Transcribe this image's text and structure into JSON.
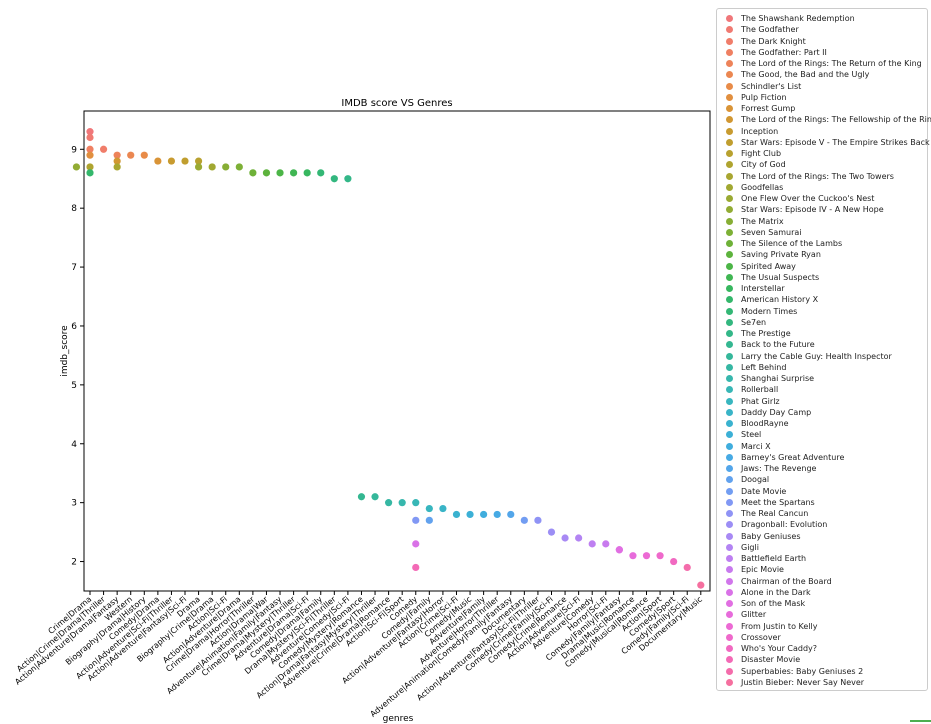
{
  "chart_data": {
    "type": "scatter",
    "title": "IMDB score VS Genres",
    "xlabel": "genres",
    "ylabel": "imdb_score",
    "ylim": [
      1.5,
      9.65
    ],
    "yticks": [
      2,
      3,
      4,
      5,
      6,
      7,
      8,
      9
    ],
    "grid": false,
    "legend_position": "outside-right",
    "categories": [
      "Crime|Drama",
      "Action|Crime|Drama|Thriller",
      "Action|Adventure|Drama|Fantasy",
      "Western",
      "Biography|Drama|History",
      "Comedy|Drama",
      "Action|Adventure|Sci-Fi|Thriller",
      "Action|Adventure|Fantasy|Sci-Fi",
      "Drama",
      "Biography|Crime|Drama",
      "Action|Sci-Fi",
      "Action|Adventure|Drama",
      "Crime|Drama|Horror|Thriller",
      "Action|Drama|War",
      "Adventure|Animation|Family|Fantasy",
      "Crime|Drama|Mystery|Thriller",
      "Adventure|Drama|Sci-Fi",
      "Comedy|Drama|Family",
      "Drama|Mystery|Sci-Fi|Thriller",
      "Adventure|Comedy|Sci-Fi",
      "Comedy|Mystery|Romance",
      "Action|Drama|Fantasy|Mystery|Thriller",
      "Adventure|Crime|Drama|Romance",
      "Action|Sci-Fi|Sport",
      "Comedy",
      "Comedy|Family",
      "Action|Adventure|Fantasy|Horror",
      "Action|Crime|Sci-Fi",
      "Comedy|Music",
      "Adventure|Family",
      "Adventure|Horror|Thriller",
      "Adventure|Animation|Comedy|Family|Fantasy",
      "Documentary",
      "Action|Adventure|Fantasy|Sci-Fi|Thriller",
      "Comedy|Crime|Family|Sci-Fi",
      "Comedy|Crime|Romance",
      "Action|Adventure|Sci-Fi",
      "Adventure|Comedy",
      "Horror|Sci-Fi",
      "Comedy|Family|Fantasy",
      "Drama|Music|Romance",
      "Comedy|Musical|Romance",
      "Action|Sport",
      "Comedy|Sport",
      "Comedy|Family|Sci-Fi",
      "Documentary|Music"
    ],
    "series": [
      {
        "name": "The Shawshank Redemption",
        "color": "#f0777a",
        "x": "Crime|Drama",
        "y": 9.3
      },
      {
        "name": "The Godfather",
        "color": "#f07a72",
        "x": "Crime|Drama",
        "y": 9.2
      },
      {
        "name": "The Dark Knight",
        "color": "#f07d6a",
        "x": "Action|Crime|Drama|Thriller",
        "y": 9.0
      },
      {
        "name": "The Godfather: Part II",
        "color": "#ef8062",
        "x": "Crime|Drama",
        "y": 9.0
      },
      {
        "name": "The Lord of the Rings: The Return of the King",
        "color": "#ed835a",
        "x": "Action|Adventure|Drama|Fantasy",
        "y": 8.9
      },
      {
        "name": "The Good, the Bad and the Ugly",
        "color": "#eb8751",
        "x": "Western",
        "y": 8.9
      },
      {
        "name": "Schindler's List",
        "color": "#e88b48",
        "x": "Biography|Drama|History",
        "y": 8.9
      },
      {
        "name": "Pulp Fiction",
        "color": "#e18f3f",
        "x": "Crime|Drama",
        "y": 8.9
      },
      {
        "name": "Forrest Gump",
        "color": "#d99437",
        "x": "Comedy|Drama",
        "y": 8.8
      },
      {
        "name": "The Lord of the Rings: The Fellowship of the Ring",
        "color": "#d19732",
        "x": "Action|Adventure|Drama|Fantasy",
        "y": 8.8
      },
      {
        "name": "Inception",
        "color": "#c89b30",
        "x": "Action|Adventure|Sci-Fi|Thriller",
        "y": 8.8
      },
      {
        "name": "Star Wars: Episode V - The Empire Strikes Back",
        "color": "#c09e2f",
        "x": "Action|Adventure|Fantasy|Sci-Fi",
        "y": 8.8
      },
      {
        "name": "Fight Club",
        "color": "#b8a12f",
        "x": "Drama",
        "y": 8.8
      },
      {
        "name": "City of God",
        "color": "#afa430",
        "x": "Crime|Drama",
        "y": 8.7
      },
      {
        "name": "The Lord of the Rings: The Two Towers",
        "color": "#a8a631",
        "x": "Action|Adventure|Drama|Fantasy",
        "y": 8.7
      },
      {
        "name": "Goodfellas",
        "color": "#a1a832",
        "x": "Biography|Crime|Drama",
        "y": 8.7
      },
      {
        "name": "One Flew Over the Cuckoo's Nest",
        "color": "#9aaa33",
        "x": "Drama",
        "y": 8.7
      },
      {
        "name": "Star Wars: Episode IV - A New Hope",
        "color": "#92ac34",
        "x": "Action|Adventure|Fantasy",
        "y": 8.7
      },
      {
        "name": "The Matrix",
        "color": "#87ae35",
        "x": "Action|Sci-Fi",
        "y": 8.7
      },
      {
        "name": "Seven Samurai",
        "color": "#7db036",
        "x": "Action|Adventure|Drama",
        "y": 8.7
      },
      {
        "name": "The Silence of the Lambs",
        "color": "#6eb138",
        "x": "Crime|Drama|Horror|Thriller",
        "y": 8.6
      },
      {
        "name": "Saving Private Ryan",
        "color": "#5db33d",
        "x": "Action|Drama|War",
        "y": 8.6
      },
      {
        "name": "Spirited Away",
        "color": "#4cb547",
        "x": "Adventure|Animation|Family|Fantasy",
        "y": 8.6
      },
      {
        "name": "The Usual Suspects",
        "color": "#40b653",
        "x": "Crime|Drama|Mystery|Thriller",
        "y": 8.6
      },
      {
        "name": "Interstellar",
        "color": "#37b75f",
        "x": "Adventure|Drama|Sci-Fi",
        "y": 8.6
      },
      {
        "name": "American History X",
        "color": "#34b76b",
        "x": "Crime|Drama",
        "y": 8.6
      },
      {
        "name": "Modern Times",
        "color": "#33b775",
        "x": "Comedy|Drama|Family",
        "y": 8.6
      },
      {
        "name": "Se7en",
        "color": "#33b77f",
        "x": "Drama|Mystery|Sci-Fi|Thriller",
        "y": 8.5
      },
      {
        "name": "The Prestige",
        "color": "#33b788",
        "x": "Adventure|Comedy|Sci-Fi",
        "y": 8.5
      },
      {
        "name": "Back to the Future",
        "color": "#34b791",
        "x": "Comedy|Mystery|Romance",
        "y": 3.1
      },
      {
        "name": "Larry the Cable Guy: Health Inspector",
        "color": "#35b79a",
        "x": "Action|Drama|Fantasy|Mystery|Thriller",
        "y": 3.1
      },
      {
        "name": "Left Behind",
        "color": "#36b7a3",
        "x": "Adventure|Crime|Drama|Romance",
        "y": 3.0
      },
      {
        "name": "Shanghai Surprise",
        "color": "#37b7ad",
        "x": "Action|Sci-Fi|Sport",
        "y": 3.0
      },
      {
        "name": "Rollerball",
        "color": "#38b7b6",
        "x": "Comedy",
        "y": 3.0
      },
      {
        "name": "Phat Girlz",
        "color": "#38b6bf",
        "x": "Comedy|Family",
        "y": 2.9
      },
      {
        "name": "Daddy Day Camp",
        "color": "#39b4c7",
        "x": "Action|Adventure|Fantasy|Horror",
        "y": 2.9
      },
      {
        "name": "BloodRayne",
        "color": "#3ab2cf",
        "x": "Action|Crime|Sci-Fi",
        "y": 2.8
      },
      {
        "name": "Steel",
        "color": "#3cb0d6",
        "x": "Comedy|Music",
        "y": 2.8
      },
      {
        "name": "Marci X",
        "color": "#40addd",
        "x": "Adventure|Family",
        "y": 2.8
      },
      {
        "name": "Barney's Great Adventure",
        "color": "#47aae4",
        "x": "Adventure|Horror|Thriller",
        "y": 2.8
      },
      {
        "name": "Jaws: The Revenge",
        "color": "#53a6ea",
        "x": "Adventure|Animation|Comedy|Family|Fantasy",
        "y": 2.8
      },
      {
        "name": "Doogal",
        "color": "#62a2ee",
        "x": "Comedy|Family",
        "y": 2.7
      },
      {
        "name": "Date Movie",
        "color": "#729df2",
        "x": "Documentary",
        "y": 2.7
      },
      {
        "name": "Meet the Spartans",
        "color": "#8198f4",
        "x": "Comedy",
        "y": 2.7
      },
      {
        "name": "The Real Cancun",
        "color": "#8f93f5",
        "x": "Action|Adventure|Fantasy|Sci-Fi|Thriller",
        "y": 2.7
      },
      {
        "name": "Dragonball: Evolution",
        "color": "#9c8ef5",
        "x": "Comedy|Crime|Family|Sci-Fi",
        "y": 2.5
      },
      {
        "name": "Baby Geniuses",
        "color": "#a889f4",
        "x": "Comedy|Crime|Romance",
        "y": 2.4
      },
      {
        "name": "Gigli",
        "color": "#b384f3",
        "x": "Action|Adventure|Sci-Fi",
        "y": 2.4
      },
      {
        "name": "Battlefield Earth",
        "color": "#be7ff1",
        "x": "Adventure|Comedy",
        "y": 2.3
      },
      {
        "name": "Epic Movie",
        "color": "#c87aee",
        "x": "Horror|Sci-Fi",
        "y": 2.3
      },
      {
        "name": "Chairman of the Board",
        "color": "#d176eb",
        "x": "Comedy|Family|Fantasy",
        "y": 2.2
      },
      {
        "name": "Alone in the Dark",
        "color": "#d972e7",
        "x": "Comedy",
        "y": 2.3
      },
      {
        "name": "Son of the Mask",
        "color": "#e16fe2",
        "x": "Comedy|Family|Fantasy",
        "y": 2.2
      },
      {
        "name": "Glitter",
        "color": "#e76cdb",
        "x": "Drama|Music|Romance",
        "y": 2.1
      },
      {
        "name": "From Justin to Kelly",
        "color": "#ec6ad4",
        "x": "Comedy|Musical|Romance",
        "y": 2.1
      },
      {
        "name": "Crossover",
        "color": "#ef69cb",
        "x": "Action|Sport",
        "y": 2.1
      },
      {
        "name": "Who's Your Caddy?",
        "color": "#f169c1",
        "x": "Comedy|Sport",
        "y": 2.0
      },
      {
        "name": "Disaster Movie",
        "color": "#f36ab6",
        "x": "Comedy",
        "y": 1.9
      },
      {
        "name": "Superbabies: Baby Geniuses 2",
        "color": "#f46cab",
        "x": "Comedy|Family|Sci-Fi",
        "y": 1.9
      },
      {
        "name": "Justin Bieber: Never Say Never",
        "color": "#f56f9f",
        "x": "Documentary|Music",
        "y": 1.6
      }
    ]
  }
}
